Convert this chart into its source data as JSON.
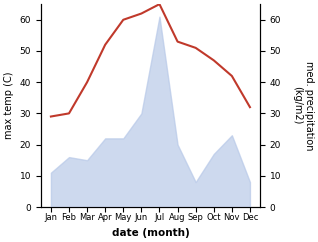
{
  "months": [
    "Jan",
    "Feb",
    "Mar",
    "Apr",
    "May",
    "Jun",
    "Jul",
    "Aug",
    "Sep",
    "Oct",
    "Nov",
    "Dec"
  ],
  "temperature": [
    29,
    30,
    40,
    52,
    60,
    62,
    65,
    53,
    51,
    47,
    42,
    32
  ],
  "precipitation": [
    11,
    16,
    15,
    22,
    22,
    30,
    61,
    20,
    8,
    17,
    23,
    8
  ],
  "temp_color": "#c0392b",
  "precip_color": "#b8c9e8",
  "ylabel_left": "max temp (C)",
  "ylabel_right": "med. precipitation\n(kg/m2)",
  "xlabel": "date (month)",
  "ylim_left": [
    0,
    65
  ],
  "ylim_right": [
    0,
    65
  ],
  "yticks_left": [
    0,
    10,
    20,
    30,
    40,
    50,
    60
  ],
  "yticks_right": [
    0,
    10,
    20,
    30,
    40,
    50,
    60
  ],
  "background_color": "#ffffff"
}
